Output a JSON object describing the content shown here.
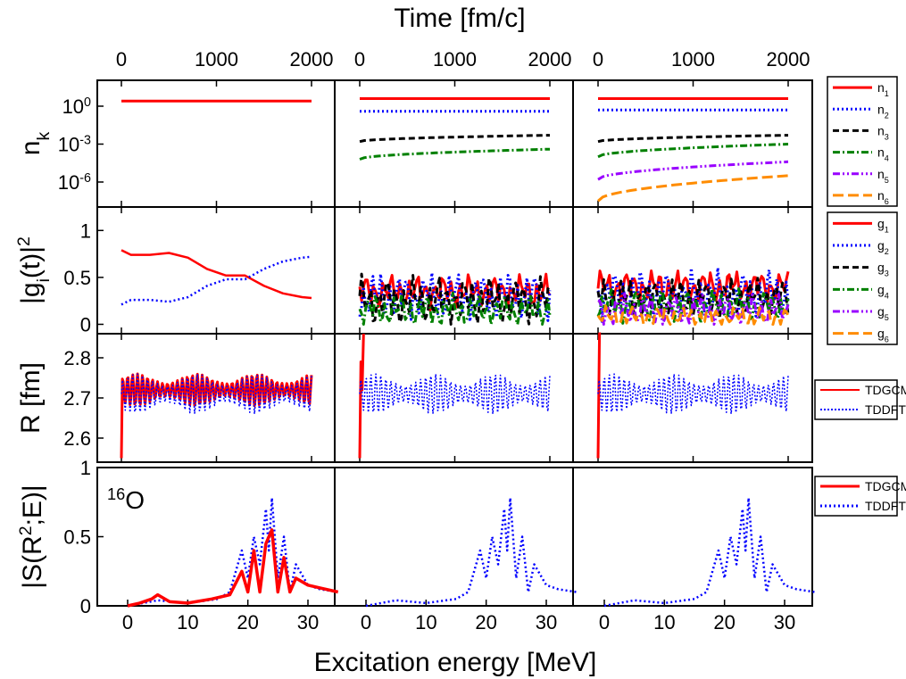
{
  "figure": {
    "top_axis_title": "Time [fm/c]",
    "bottom_axis_title": "Excitation energy [MeV]",
    "top_ticks": [
      "0",
      "1000",
      "2000"
    ],
    "bottom_ticks": [
      "0",
      "10",
      "20",
      "30"
    ],
    "nucleus_label": {
      "mass": "16",
      "symbol": "O"
    }
  },
  "rows": [
    {
      "ylabel": "n",
      "ylabel_sub": "k",
      "scale": "log",
      "ticks": [
        {
          "base": "10",
          "exp": "0"
        },
        {
          "base": "10",
          "exp": "-3"
        },
        {
          "base": "10",
          "exp": "-6"
        }
      ]
    },
    {
      "ylabel": "|g",
      "ylabel_sub": "i",
      "ylabel_rest": "(t)|",
      "ylabel_sup": "2",
      "ticks": [
        "1",
        "0.5",
        "0"
      ]
    },
    {
      "ylabel": "R [fm]",
      "ticks": [
        "2.8",
        "2.7",
        "2.6"
      ]
    },
    {
      "ylabel": "|S(R",
      "ylabel_sup": "2",
      "ylabel_rest": ";E)|",
      "ticks": [
        "1",
        "0.5",
        "0"
      ]
    }
  ],
  "legends": {
    "nk": [
      {
        "base": "n",
        "sub": "1"
      },
      {
        "base": "n",
        "sub": "2"
      },
      {
        "base": "n",
        "sub": "3"
      },
      {
        "base": "n",
        "sub": "4"
      },
      {
        "base": "n",
        "sub": "5"
      },
      {
        "base": "n",
        "sub": "6"
      }
    ],
    "gi": [
      {
        "base": "g",
        "sub": "1"
      },
      {
        "base": "g",
        "sub": "2"
      },
      {
        "base": "g",
        "sub": "3"
      },
      {
        "base": "g",
        "sub": "4"
      },
      {
        "base": "g",
        "sub": "5"
      },
      {
        "base": "g",
        "sub": "6"
      }
    ],
    "R": [
      "TDGCM",
      "TDDFT"
    ],
    "S": [
      "TDGCM",
      "TDDFT"
    ]
  },
  "styles": {
    "colors": [
      "#ff0000",
      "#0000ff",
      "#000000",
      "#008000",
      "#9900ff",
      "#ff8c00"
    ],
    "dashes": [
      "",
      "2,3",
      "7,4",
      "8,3,2,3",
      "8,3,2,3,2,3",
      "12,5"
    ]
  },
  "chart_data": [
    {
      "type": "line",
      "panel": "nk",
      "scale": "log10",
      "xlabel": "Time [fm/c]",
      "xlim": [
        -50,
        2100
      ],
      "ylim_log10": [
        -8,
        2
      ],
      "columns": [
        {
          "series": [
            {
              "name": "n1",
              "log10_start": 0.4,
              "log10_end": 0.4
            }
          ]
        },
        {
          "series": [
            {
              "name": "n1",
              "log10_start": 0.6,
              "log10_end": 0.6
            },
            {
              "name": "n2",
              "log10_start": -0.4,
              "log10_end": -0.4
            },
            {
              "name": "n3",
              "log10_start": -2.8,
              "log10_end": -2.3
            },
            {
              "name": "n4",
              "log10_start": -4.2,
              "log10_end": -3.4
            }
          ]
        },
        {
          "series": [
            {
              "name": "n1",
              "log10_start": 0.6,
              "log10_end": 0.6
            },
            {
              "name": "n2",
              "log10_start": -0.3,
              "log10_end": -0.3
            },
            {
              "name": "n3",
              "log10_start": -2.8,
              "log10_end": -2.3
            },
            {
              "name": "n4",
              "log10_start": -4.0,
              "log10_end": -3.0
            },
            {
              "name": "n5",
              "log10_start": -5.8,
              "log10_end": -4.4
            },
            {
              "name": "n6",
              "log10_start": -7.5,
              "log10_end": -5.5
            }
          ]
        }
      ]
    },
    {
      "type": "line",
      "panel": "gi",
      "xlabel": "Time [fm/c]",
      "xlim": [
        -50,
        2100
      ],
      "ylim": [
        -0.1,
        1.25
      ],
      "columns": [
        {
          "series": [
            {
              "name": "g1",
              "x": [
                0,
                100,
                300,
                500,
                700,
                900,
                1100,
                1300,
                1500,
                1700,
                1900,
                2000
              ],
              "y": [
                0.79,
                0.74,
                0.74,
                0.76,
                0.71,
                0.59,
                0.52,
                0.52,
                0.41,
                0.33,
                0.29,
                0.28
              ]
            },
            {
              "name": "g2",
              "x": [
                0,
                100,
                300,
                500,
                700,
                900,
                1100,
                1300,
                1500,
                1700,
                1900,
                2000
              ],
              "y": [
                0.21,
                0.26,
                0.26,
                0.24,
                0.29,
                0.41,
                0.48,
                0.48,
                0.59,
                0.67,
                0.71,
                0.72
              ]
            }
          ]
        },
        {
          "series": [
            {
              "name": "g1",
              "mean": 0.35,
              "amp": 0.2
            },
            {
              "name": "g2",
              "mean": 0.3,
              "amp": 0.3
            },
            {
              "name": "g3",
              "mean": 0.25,
              "amp": 0.3
            },
            {
              "name": "g4",
              "mean": 0.15,
              "amp": 0.2
            }
          ]
        },
        {
          "series": [
            {
              "name": "g1",
              "mean": 0.4,
              "amp": 0.2
            },
            {
              "name": "g2",
              "mean": 0.32,
              "amp": 0.3
            },
            {
              "name": "g3",
              "mean": 0.28,
              "amp": 0.25
            },
            {
              "name": "g4",
              "mean": 0.2,
              "amp": 0.2
            },
            {
              "name": "g5",
              "mean": 0.15,
              "amp": 0.2
            },
            {
              "name": "g6",
              "mean": 0.08,
              "amp": 0.12
            }
          ]
        }
      ]
    },
    {
      "type": "line",
      "panel": "R",
      "xlabel": "Time [fm/c]",
      "ylabel": "R [fm]",
      "xlim": [
        -50,
        2100
      ],
      "ylim": [
        2.54,
        2.86
      ],
      "columns": [
        {
          "series": [
            {
              "name": "TDGCM",
              "mean": 2.72,
              "amp": 0.04,
              "start": 2.55
            },
            {
              "name": "TDDFT",
              "mean": 2.71,
              "amp": 0.05
            }
          ]
        },
        {
          "series": [
            {
              "name": "TDGCM",
              "x": [
                0,
                12,
                25,
                40
              ],
              "y": [
                2.55,
                2.79,
                2.72,
                2.86
              ]
            },
            {
              "name": "TDDFT",
              "mean": 2.71,
              "amp": 0.05
            }
          ]
        },
        {
          "series": [
            {
              "name": "TDGCM",
              "x": [
                0,
                15,
                30
              ],
              "y": [
                2.55,
                2.86,
                2.86
              ]
            },
            {
              "name": "TDDFT",
              "mean": 2.71,
              "amp": 0.05
            }
          ]
        }
      ]
    },
    {
      "type": "line",
      "panel": "S",
      "xlabel": "Excitation energy [MeV]",
      "xlim": [
        -5,
        35
      ],
      "ylim": [
        0,
        1
      ],
      "tddft": {
        "x": [
          0,
          5,
          10,
          15,
          17,
          19,
          20,
          21,
          22,
          23,
          23.5,
          24,
          25,
          26,
          27,
          28,
          30,
          32,
          35
        ],
        "y": [
          0.0,
          0.04,
          0.02,
          0.05,
          0.1,
          0.4,
          0.2,
          0.5,
          0.3,
          0.7,
          0.4,
          0.78,
          0.2,
          0.5,
          0.1,
          0.3,
          0.15,
          0.12,
          0.1
        ]
      },
      "tdgcm": {
        "x": [
          0,
          2,
          4,
          5,
          7,
          10,
          14,
          17,
          19,
          20,
          21,
          22,
          23,
          24,
          25,
          26,
          27,
          28,
          30,
          32,
          35
        ],
        "y": [
          0.0,
          0.02,
          0.05,
          0.08,
          0.03,
          0.02,
          0.05,
          0.08,
          0.25,
          0.1,
          0.4,
          0.1,
          0.45,
          0.55,
          0.1,
          0.35,
          0.1,
          0.2,
          0.15,
          0.13,
          0.1
        ]
      }
    }
  ]
}
